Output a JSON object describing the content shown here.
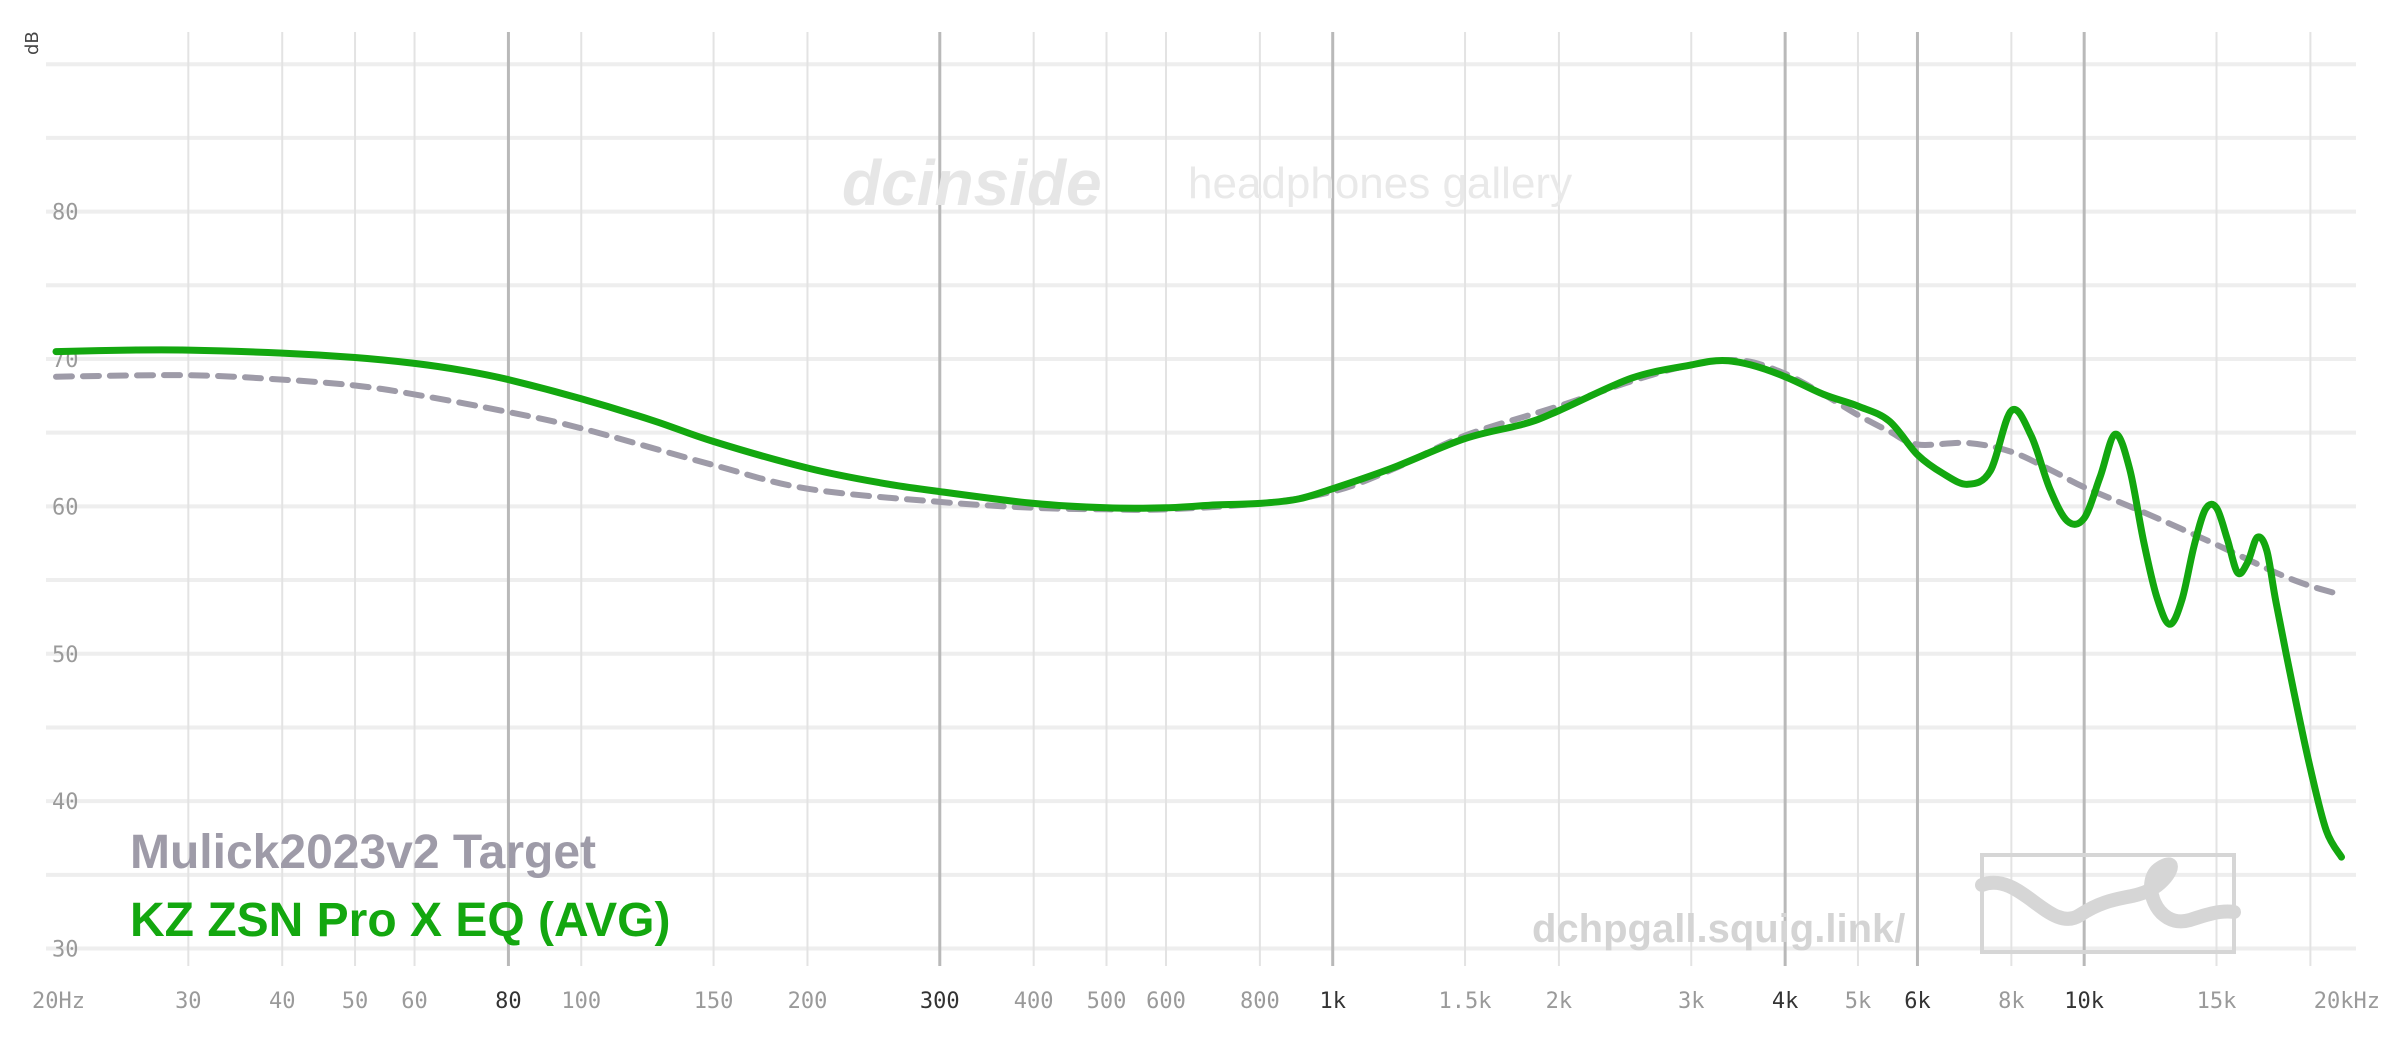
{
  "chart_data": {
    "type": "line",
    "ylabel": "dB",
    "ylim": [
      28,
      93
    ],
    "y_ticks": [
      30,
      40,
      50,
      60,
      70,
      80
    ],
    "xlim": [
      20,
      23000
    ],
    "x_scale": "log",
    "x_ticks": [
      {
        "value": 20,
        "label": "20Hz",
        "major": false
      },
      {
        "value": 30,
        "label": "30",
        "major": false
      },
      {
        "value": 40,
        "label": "40",
        "major": false
      },
      {
        "value": 50,
        "label": "50",
        "major": false
      },
      {
        "value": 60,
        "label": "60",
        "major": false
      },
      {
        "value": 80,
        "label": "80",
        "major": true
      },
      {
        "value": 100,
        "label": "100",
        "major": false
      },
      {
        "value": 150,
        "label": "150",
        "major": false
      },
      {
        "value": 200,
        "label": "200",
        "major": false
      },
      {
        "value": 300,
        "label": "300",
        "major": true
      },
      {
        "value": 400,
        "label": "400",
        "major": false
      },
      {
        "value": 500,
        "label": "500",
        "major": false
      },
      {
        "value": 600,
        "label": "600",
        "major": false
      },
      {
        "value": 800,
        "label": "800",
        "major": false
      },
      {
        "value": 1000,
        "label": "1k",
        "major": true
      },
      {
        "value": 1500,
        "label": "1.5k",
        "major": false
      },
      {
        "value": 2000,
        "label": "2k",
        "major": false
      },
      {
        "value": 3000,
        "label": "3k",
        "major": false
      },
      {
        "value": 4000,
        "label": "4k",
        "major": true
      },
      {
        "value": 5000,
        "label": "5k",
        "major": false
      },
      {
        "value": 6000,
        "label": "6k",
        "major": true
      },
      {
        "value": 8000,
        "label": "8k",
        "major": false
      },
      {
        "value": 10000,
        "label": "10k",
        "major": true
      },
      {
        "value": 15000,
        "label": "15k",
        "major": false
      },
      {
        "value": 20000,
        "label": "20kHz",
        "major": false
      }
    ],
    "legend": "bottom-left",
    "series": [
      {
        "name": "Mulick2023v2 Target",
        "color": "#9e9ba8",
        "style": "dashed",
        "x": [
          20,
          30,
          40,
          50,
          60,
          80,
          100,
          150,
          200,
          300,
          400,
          500,
          600,
          800,
          1000,
          1200,
          1500,
          2000,
          2500,
          3000,
          3500,
          4000,
          4500,
          5000,
          5500,
          6000,
          7000,
          8000,
          9000,
          10000,
          12000,
          15000,
          18000,
          20000,
          22000
        ],
        "values": [
          68.8,
          68.9,
          68.6,
          68.2,
          67.6,
          66.4,
          65.3,
          62.8,
          61.2,
          60.3,
          59.9,
          59.8,
          59.8,
          60.2,
          61.0,
          62.5,
          64.8,
          66.8,
          68.5,
          69.6,
          69.9,
          69.0,
          67.6,
          66.2,
          65.1,
          64.2,
          64.3,
          63.7,
          62.5,
          61.3,
          59.6,
          57.4,
          55.5,
          54.6,
          54.0
        ]
      },
      {
        "name": "KZ ZSN Pro X EQ (AVG)",
        "color": "#13a70f",
        "style": "solid",
        "x": [
          20,
          25,
          30,
          40,
          50,
          60,
          70,
          80,
          100,
          125,
          150,
          200,
          250,
          300,
          400,
          500,
          600,
          700,
          800,
          900,
          1000,
          1200,
          1500,
          1800,
          2000,
          2500,
          3000,
          3300,
          3600,
          4000,
          4500,
          5000,
          5500,
          6000,
          6500,
          7000,
          7500,
          8000,
          8500,
          9000,
          9500,
          10000,
          10500,
          11000,
          11500,
          12000,
          12500,
          13000,
          13500,
          14000,
          14500,
          15000,
          15500,
          16000,
          16500,
          17000,
          17500,
          18000,
          19000,
          20000,
          21000,
          22000
        ],
        "values": [
          70.5,
          70.6,
          70.6,
          70.4,
          70.1,
          69.7,
          69.2,
          68.6,
          67.3,
          65.8,
          64.4,
          62.6,
          61.6,
          61.0,
          60.2,
          59.9,
          59.9,
          60.1,
          60.2,
          60.5,
          61.2,
          62.6,
          64.6,
          65.6,
          66.5,
          68.7,
          69.6,
          69.9,
          69.6,
          68.8,
          67.6,
          66.8,
          65.8,
          63.5,
          62.2,
          61.5,
          62.4,
          66.5,
          64.8,
          61.2,
          59.0,
          59.2,
          62.0,
          64.9,
          62.5,
          57.6,
          53.8,
          52.0,
          53.7,
          57.3,
          59.8,
          59.9,
          57.8,
          55.5,
          56.2,
          57.9,
          57.0,
          53.5,
          47.5,
          42.2,
          38.0,
          36.2
        ]
      }
    ]
  },
  "watermark": {
    "brand": "dcinside",
    "subtitle": "headphones gallery",
    "url": "dchpgall.squig.link/"
  }
}
